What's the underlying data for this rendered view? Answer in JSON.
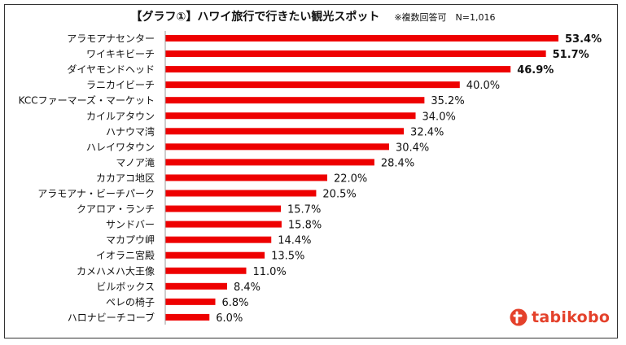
{
  "chart_data": {
    "type": "bar",
    "orientation": "horizontal",
    "title": "【グラフ①】ハワイ旅行で行きたい観光スポット",
    "note": "※複数回答可　N=1,016",
    "categories": [
      "アラモアナセンター",
      "ワイキキビーチ",
      "ダイヤモンドヘッド",
      "ラニカイビーチ",
      "KCCファーマーズ・マーケット",
      "カイルアタウン",
      "ハナウマ湾",
      "ハレイワタウン",
      "マノア滝",
      "カカアコ地区",
      "アラモアナ・ビーチパーク",
      "クアロア・ランチ",
      "サンドバー",
      "マカプウ岬",
      "イオラニ宮殿",
      "カメハメハ大王像",
      "ビルボックス",
      "ペレの椅子",
      "ハロナビーチコーブ"
    ],
    "values": [
      53.4,
      51.7,
      46.9,
      40.0,
      35.2,
      34.0,
      32.4,
      30.4,
      28.4,
      22.0,
      20.5,
      15.7,
      15.8,
      14.4,
      13.5,
      11.0,
      8.4,
      6.8,
      6.0
    ],
    "value_labels": [
      "53.4%",
      "51.7%",
      "46.9%",
      "40.0%",
      "35.2%",
      "34.0%",
      "32.4%",
      "30.4%",
      "28.4%",
      "22.0%",
      "20.5%",
      "15.7%",
      "15.8%",
      "14.4%",
      "13.5%",
      "11.0%",
      "8.4%",
      "6.8%",
      "6.0%"
    ],
    "bold_top": 3,
    "xlim": [
      0,
      53.4
    ],
    "grid": false,
    "legend": "none",
    "bar_color": "#ee0000"
  },
  "logo": {
    "text": "tabikobo",
    "color": "#e4412b"
  }
}
